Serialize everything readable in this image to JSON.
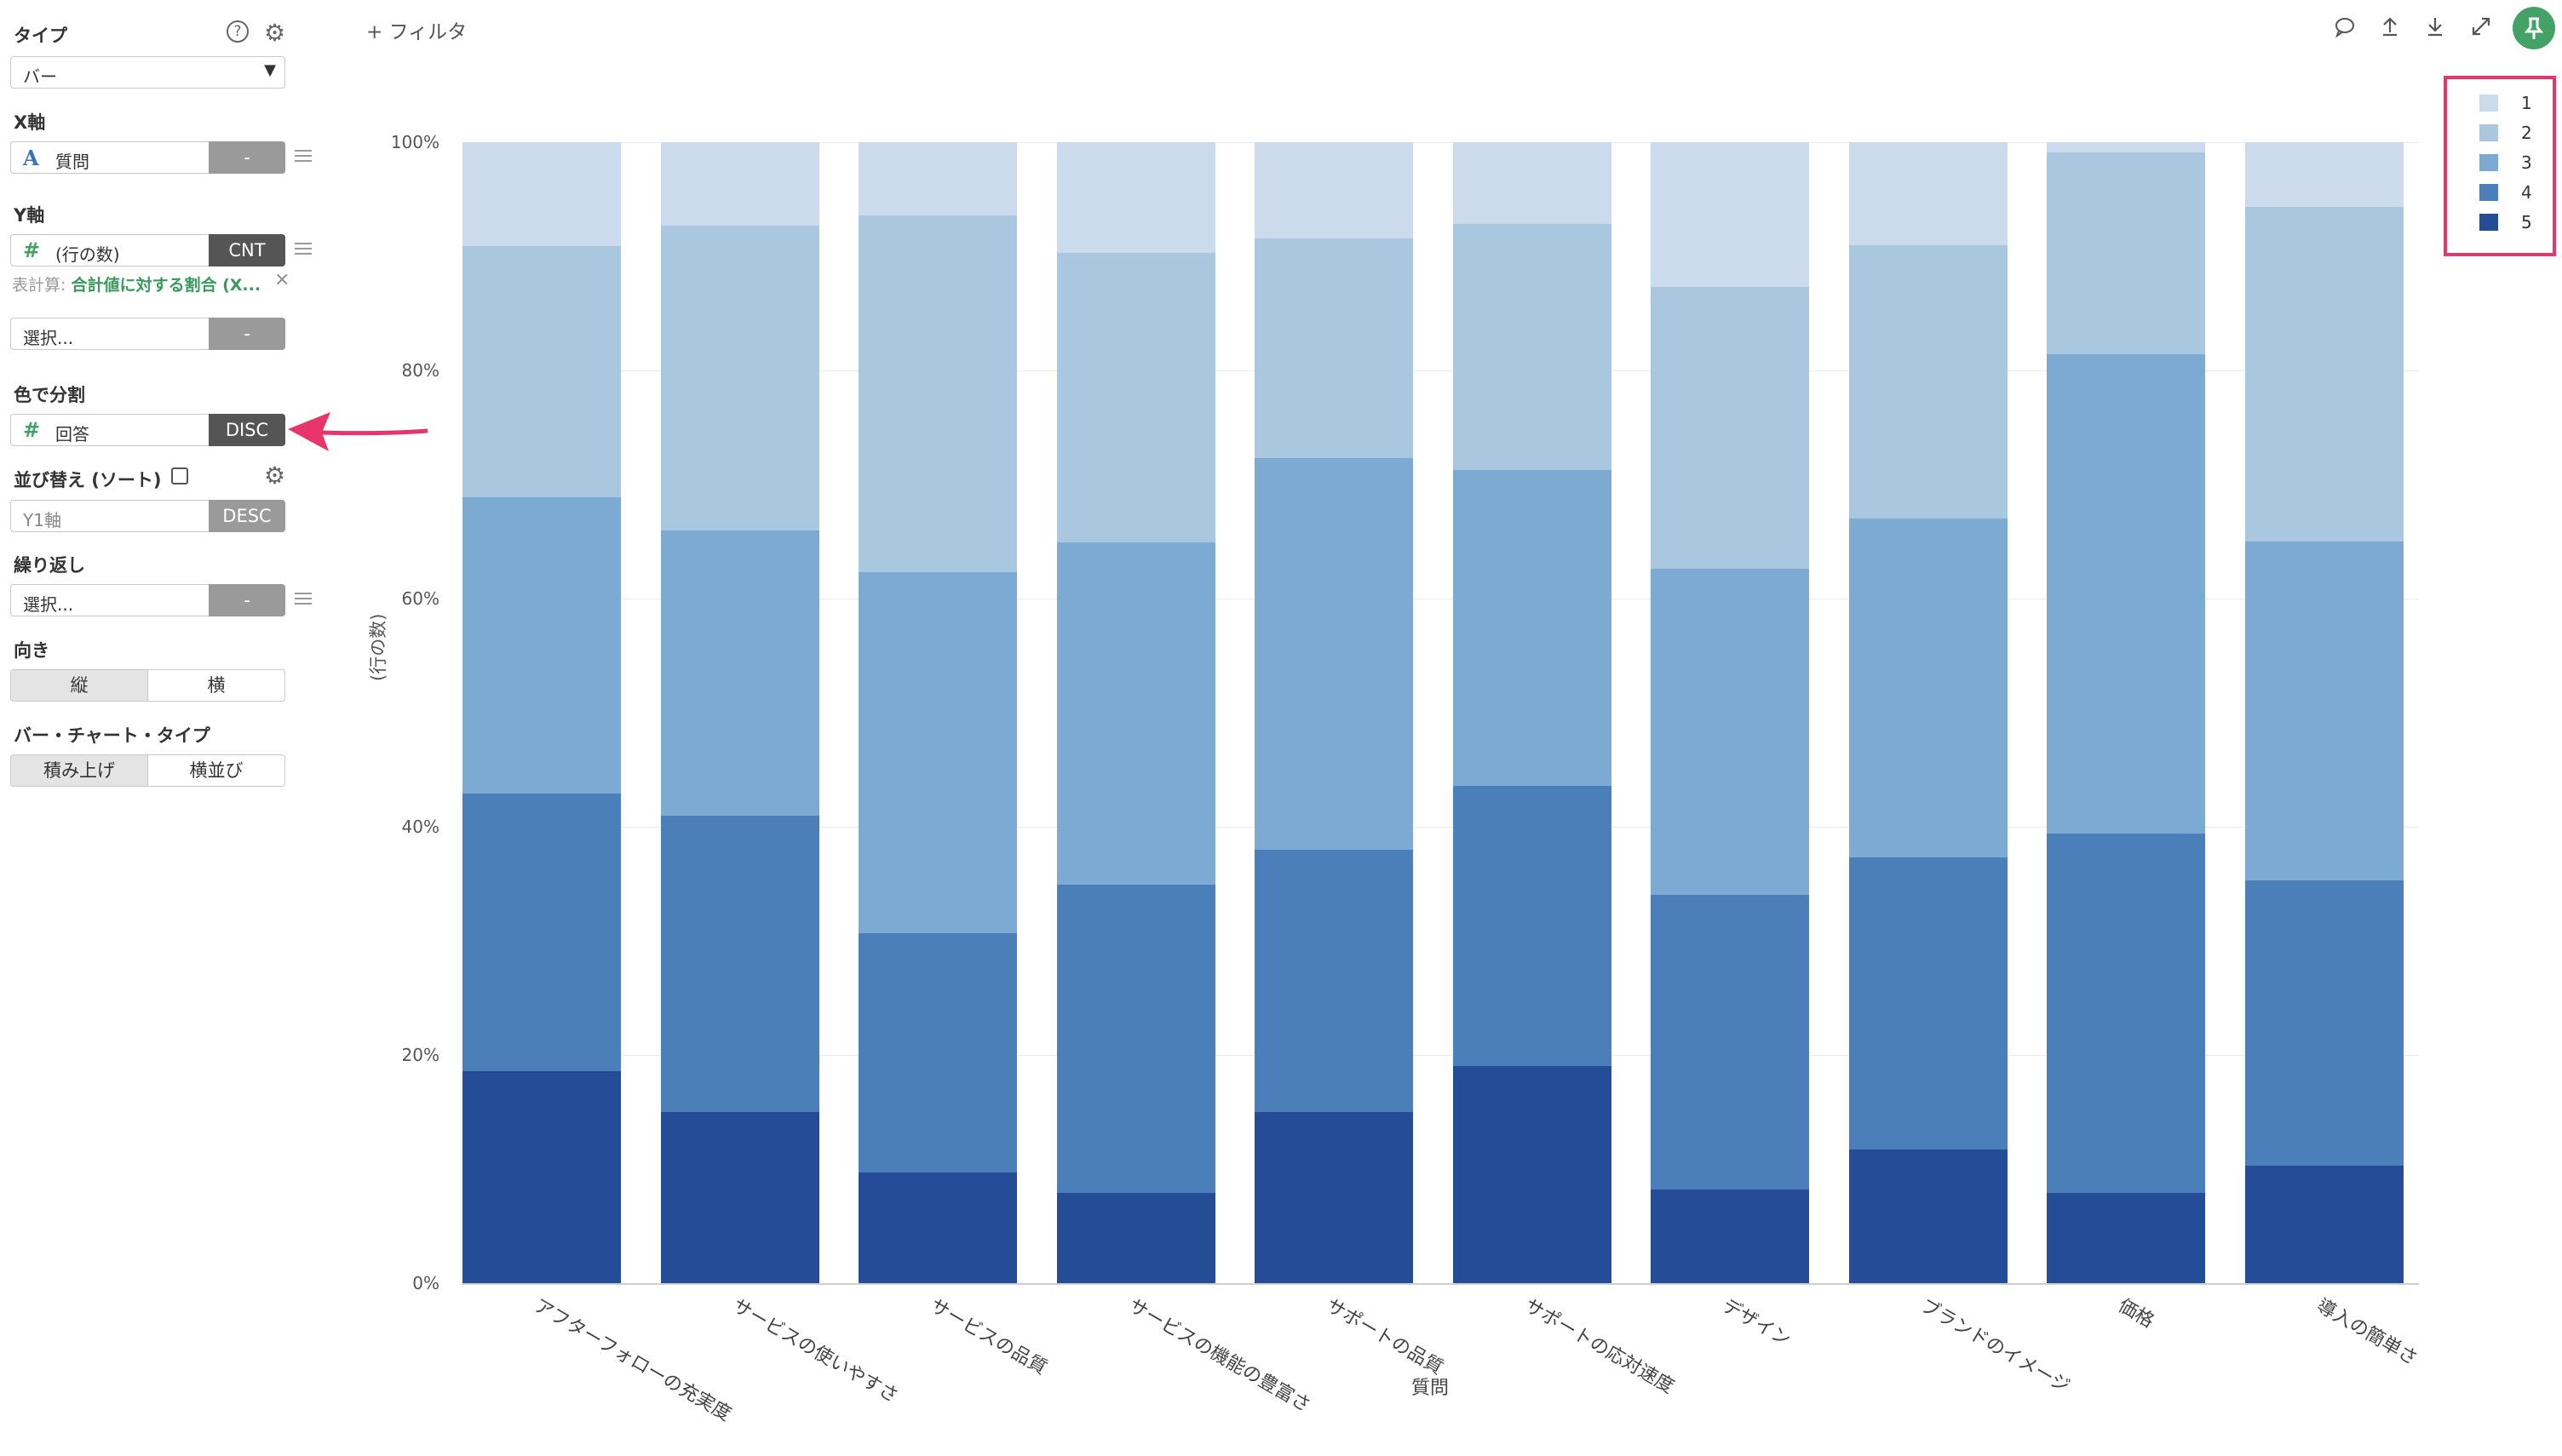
{
  "sidebar": {
    "type": {
      "label": "タイプ",
      "value": "バー"
    },
    "x_axis": {
      "label": "X軸",
      "field": "質問",
      "button": "-"
    },
    "y_axis": {
      "label": "Y軸",
      "field": "(行の数)",
      "button": "CNT",
      "calc_prefix": "表計算:",
      "calc_value": "合計値に対する割合 (X...",
      "calc_remove": "×"
    },
    "y2": {
      "placeholder": "選択...",
      "button": "-"
    },
    "color": {
      "label": "色で分割",
      "field": "回答",
      "button": "DISC"
    },
    "sort": {
      "label": "並び替え (ソート)",
      "placeholder": "Y1軸",
      "button": "DESC"
    },
    "repeat": {
      "label": "繰り返し",
      "placeholder": "選択...",
      "button": "-"
    },
    "orientation": {
      "label": "向き",
      "options": [
        "縦",
        "横"
      ]
    },
    "bar_type": {
      "label": "バー・チャート・タイプ",
      "options": [
        "積み上げ",
        "横並び"
      ]
    }
  },
  "toolbar": {
    "filter_label": "+ フィルタ",
    "icons": [
      "comment-icon",
      "upload-icon",
      "download-icon",
      "expand-icon",
      "pin-icon"
    ]
  },
  "colors": {
    "c1": "#ccdaee",
    "c2": "#a9c8e0",
    "c3": "#7caad2",
    "c4": "#4a7fba",
    "c5": "#244c97",
    "accent": "#e8356b",
    "pin": "#43a367"
  },
  "chart_data": {
    "type": "bar",
    "stacked": true,
    "xlabel": "質問",
    "ylabel": "(行の数)",
    "ylim": [
      0,
      100
    ],
    "yticks": [
      "0%",
      "20%",
      "40%",
      "60%",
      "80%",
      "100%"
    ],
    "categories": [
      "アフターフォローの充実度",
      "サービスの使いやすさ",
      "サービスの品質",
      "サービスの機能の豊富さ",
      "サポートの品質",
      "サポートの応対速度",
      "デザイン",
      "ブランドのイメージ",
      "価格",
      "導入の簡単さ"
    ],
    "legend": [
      "1",
      "2",
      "3",
      "4",
      "5"
    ],
    "series": [
      {
        "name": "5",
        "values": [
          18.6,
          15.0,
          9.7,
          7.9,
          15.0,
          19.0,
          8.2,
          11.7,
          7.9,
          10.3
        ]
      },
      {
        "name": "4",
        "values": [
          24.3,
          26.0,
          21.0,
          27.0,
          23.0,
          24.6,
          25.8,
          25.6,
          31.5,
          25.0
        ]
      },
      {
        "name": "3",
        "values": [
          26.0,
          25.0,
          31.6,
          30.0,
          34.3,
          27.7,
          28.6,
          29.7,
          42.0,
          29.7
        ]
      },
      {
        "name": "2",
        "values": [
          22.0,
          26.7,
          31.3,
          25.4,
          19.3,
          21.5,
          24.7,
          24.0,
          17.7,
          29.3
        ]
      },
      {
        "name": "1",
        "values": [
          9.1,
          7.3,
          6.4,
          9.7,
          8.4,
          7.2,
          12.7,
          9.0,
          0.9,
          5.7
        ]
      }
    ]
  }
}
